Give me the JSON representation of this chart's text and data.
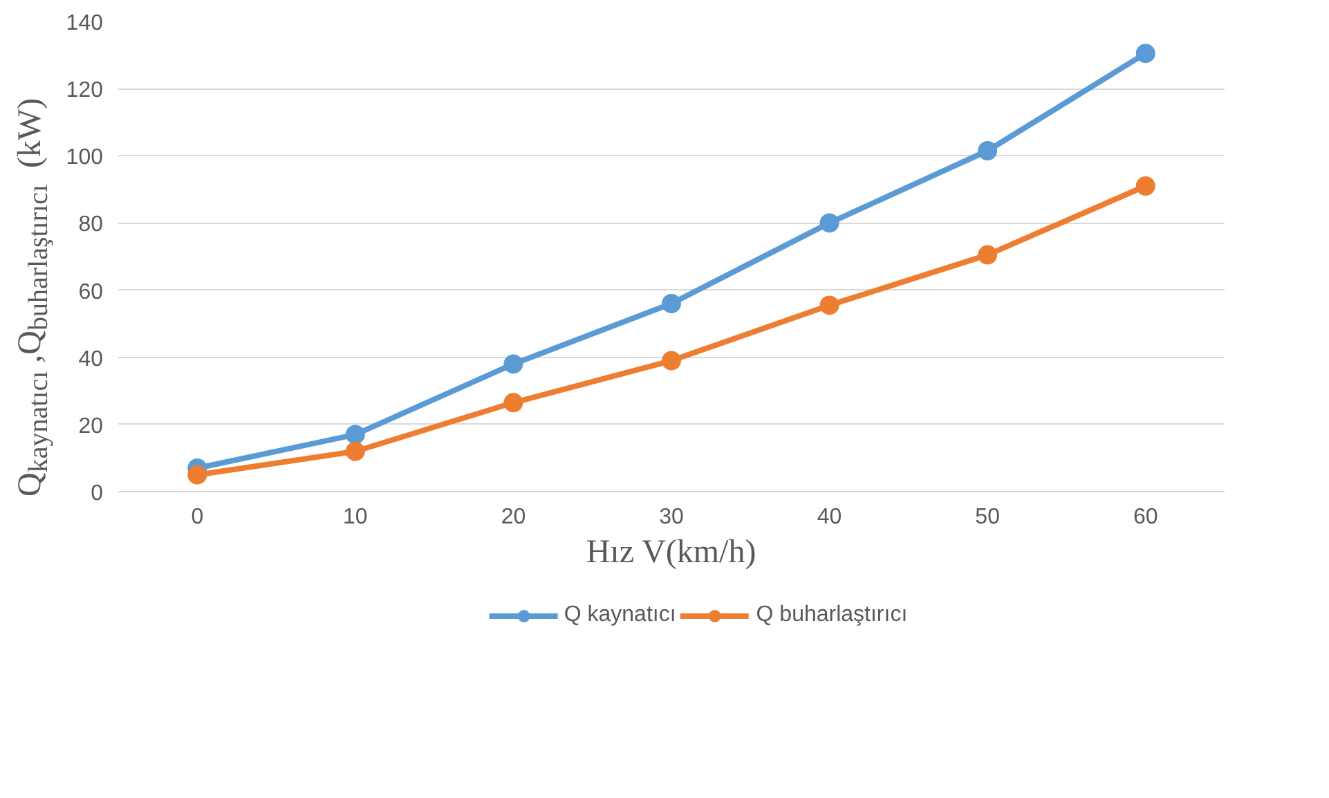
{
  "chart_data": {
    "type": "line",
    "xlabel": "Hız V(km/h)",
    "ylabel": "Q$_{kaynatıcı}$ ,Q$_{buharlaştırıcı}$  (kW)",
    "categories": [
      "0",
      "10",
      "20",
      "30",
      "40",
      "50",
      "60"
    ],
    "series": [
      {
        "name": "Q kaynatıcı",
        "color": "#5b9bd5",
        "values": [
          7,
          17,
          38,
          56,
          80,
          101.5,
          130.5
        ]
      },
      {
        "name": "Q buharlaştırıcı",
        "color": "#ed7d31",
        "values": [
          5,
          12,
          26.5,
          39,
          55.5,
          70.5,
          91
        ]
      }
    ],
    "ylim": [
      0,
      140
    ],
    "yticks": [
      0,
      20,
      40,
      60,
      80,
      100,
      120,
      140
    ],
    "grid": "y",
    "legend": "bottom",
    "marker": "circle",
    "line_style": "solid"
  }
}
